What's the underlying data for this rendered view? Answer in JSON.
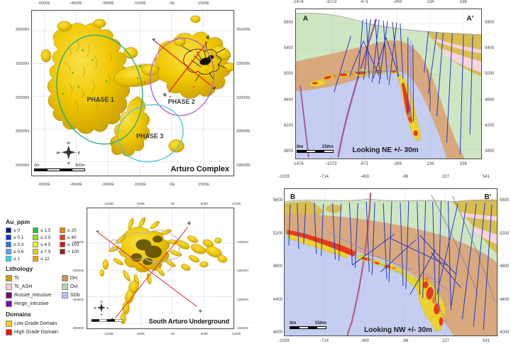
{
  "palette": {
    "gold1": "#f6d403",
    "gold2": "#c99e00",
    "gold_dark": "#8a6d00",
    "ovi": "#cfe6c3",
    "drc": "#d9a97d",
    "sdb": "#c5cdf1",
    "tc": "#d9bd4f",
    "tc_ash": "#f8d4de",
    "teal_band": "#c2e2d4",
    "fault_purple": "#a0549b",
    "fault_mauve": "#b0627e",
    "fault_gray": "#8a8a8a",
    "fault_slate": "#6b5b73",
    "drill_blue": "#2438c8",
    "drill_light": "#7f8fe8",
    "hg_red": "#e8391d",
    "lens_yellow": "#ecd22b",
    "lens_orange": "#f0841e",
    "speck_cyan": "#30d0e0",
    "speck_green": "#38c838",
    "phase1": "#2fae76",
    "phase2": "#bb65c9",
    "phase3": "#4fc7de",
    "section_red": "#e02820",
    "workings_gray": "#b5b5b5",
    "workings_black": "#1a1a1a",
    "grid": "#a8aeb6",
    "surface": "#9a9a9a",
    "compass": "#2b2b2b"
  },
  "compass": {
    "n": "N",
    "e": "E",
    "s": "S",
    "w": "W"
  },
  "legend": {
    "au_title": "Au_ppm",
    "au_items": [
      {
        "label": "≤ 0",
        "color": "#15159c"
      },
      {
        "label": "≤ 0.1",
        "color": "#0a36e8"
      },
      {
        "label": "≤ 0.3",
        "color": "#1b76f2"
      },
      {
        "label": "≤ 0.6",
        "color": "#53a4f5"
      },
      {
        "label": "≤ 1",
        "color": "#25dff2"
      },
      {
        "label": "≤ 1.5",
        "color": "#12c53c"
      },
      {
        "label": "≤ 2.5",
        "color": "#86ef0a"
      },
      {
        "label": "≤ 4.5",
        "color": "#f9f903"
      },
      {
        "label": "≤ 7.5",
        "color": "#f9c903"
      },
      {
        "label": "≤ 12",
        "color": "#f99d03"
      },
      {
        "label": "≤ 20",
        "color": "#f97c03"
      },
      {
        "label": "≤ 40",
        "color": "#f93503"
      },
      {
        "label": "≤ 100",
        "color": "#de1207"
      },
      {
        "label": "> 100",
        "color": "#a31d12"
      }
    ],
    "lith_title": "Lithology",
    "lith_items": [
      {
        "label": "Tc",
        "color": "#c7a50a"
      },
      {
        "label": "Tc_ASH",
        "color": "#f9cbd6"
      },
      {
        "label": "Russet_Intrusive",
        "color": "#6d0b6d"
      },
      {
        "label": "Hinge_Intrusive",
        "color": "#7d0ea3"
      },
      {
        "label": "Drc",
        "color": "#c9935b"
      },
      {
        "label": "Ovi",
        "color": "#b7dcaa"
      },
      {
        "label": "SDb",
        "color": "#b9c4f2"
      }
    ],
    "dom_title": "Domains",
    "dom_items": [
      {
        "label": "Low Grade Domain",
        "color": "#f7ce08"
      },
      {
        "label": "High Grade Domain",
        "color": "#fa0e0e"
      }
    ]
  },
  "arturo_map": {
    "title": "Arturo Complex",
    "x_ticks": [
      "-6000E",
      "-4500E",
      "-3000E",
      "-1500E",
      "-0E",
      "1500E"
    ],
    "y_ticks": [
      "35000N",
      "33500N",
      "32000N",
      "30500N",
      "29000N"
    ],
    "phase1": "PHASE 1",
    "phase2": "PHASE 2",
    "phase3": "PHASE 3",
    "sec_a": "A",
    "sec_a2": "A'",
    "sec_b": "B",
    "sec_b2": "B'",
    "scale_start": "0m",
    "scale_end": "600m"
  },
  "underground_map": {
    "title": "South Arturo Underground",
    "x_ticks": [
      "-1200E",
      "-600E",
      "-0E",
      "600E",
      "1200E"
    ],
    "y_ticks": [
      "34000N",
      "33500N",
      "33000N",
      "32500N"
    ],
    "sec_a": "A",
    "sec_a2": "A'",
    "sec_b": "B",
    "sec_b2": "B'"
  },
  "section_a": {
    "label_start": "A",
    "label_end": "A'",
    "x_ticks": [
      "-1476",
      "-1073",
      "-671",
      "-269",
      "134",
      "536"
    ],
    "y_ticks": [
      "5800",
      "5400",
      "5000",
      "4600",
      "4200",
      "3800"
    ],
    "caption": "Looking NE +/- 30m",
    "scale_start": "0m",
    "scale_end": "150m"
  },
  "section_b": {
    "label_start": "B",
    "label_end": "B'",
    "x_ticks": [
      "-1028",
      "-714",
      "-400",
      "-86",
      "227",
      "541"
    ],
    "y_ticks": [
      "5600",
      "5200",
      "4800",
      "4400",
      "4000"
    ],
    "caption": "Looking NW +/- 30m",
    "scale_start": "0m",
    "scale_end": "150m"
  }
}
